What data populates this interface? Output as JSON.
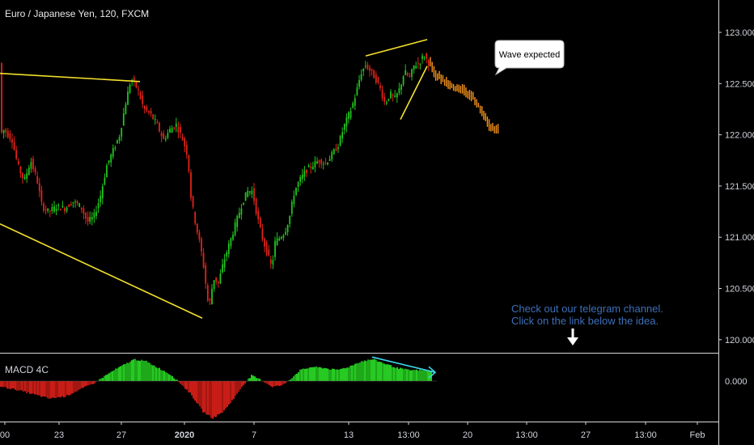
{
  "title": "Euro / Japanese Yen, 120, FXCM",
  "callout": "Wave expected",
  "note_lines": [
    "Check out our telegram channel.",
    "Click on the link below the idea."
  ],
  "indicator_label": "MACD 4C",
  "colors": {
    "up": "#22c41e",
    "down": "#e0241a",
    "projection": "#f7941d",
    "trendline": "#f5e22a",
    "divergence": "#3fd8e8",
    "note": "#3d6fb8",
    "background": "#000000",
    "axis_text": "#d1d4dc"
  },
  "chart_data": [
    {
      "type": "candlestick",
      "name": "Euro / Japanese Yen, 120, FXCM",
      "price_ticks": [
        "123.000",
        "122.500",
        "122.000",
        "121.500",
        "121.000",
        "120.500",
        "120.000"
      ],
      "ylim": [
        119.9,
        123.15
      ],
      "time_ticks": [
        "00",
        "23",
        "27",
        "2020",
        "7",
        "13",
        "13:00",
        "20",
        "13:00",
        "27",
        "13:00",
        "Feb"
      ],
      "path": [
        [
          0,
          122.0
        ],
        [
          5,
          122.05
        ],
        [
          15,
          121.95
        ],
        [
          22,
          121.7
        ],
        [
          30,
          121.55
        ],
        [
          38,
          121.75
        ],
        [
          46,
          121.55
        ],
        [
          52,
          121.3
        ],
        [
          60,
          121.25
        ],
        [
          70,
          121.3
        ],
        [
          80,
          121.28
        ],
        [
          90,
          121.35
        ],
        [
          100,
          121.3
        ],
        [
          108,
          121.15
        ],
        [
          116,
          121.2
        ],
        [
          124,
          121.4
        ],
        [
          132,
          121.7
        ],
        [
          140,
          121.85
        ],
        [
          148,
          122.0
        ],
        [
          155,
          122.3
        ],
        [
          162,
          122.55
        ],
        [
          170,
          122.45
        ],
        [
          178,
          122.25
        ],
        [
          186,
          122.2
        ],
        [
          194,
          122.1
        ],
        [
          202,
          121.95
        ],
        [
          210,
          122.05
        ],
        [
          218,
          122.1
        ],
        [
          226,
          121.95
        ],
        [
          232,
          121.8
        ],
        [
          236,
          121.4
        ],
        [
          240,
          121.2
        ],
        [
          244,
          121.05
        ],
        [
          248,
          120.9
        ],
        [
          252,
          120.7
        ],
        [
          258,
          120.3
        ],
        [
          264,
          120.6
        ],
        [
          270,
          120.55
        ],
        [
          276,
          120.75
        ],
        [
          282,
          120.9
        ],
        [
          288,
          121.05
        ],
        [
          294,
          121.2
        ],
        [
          300,
          121.35
        ],
        [
          306,
          121.45
        ],
        [
          312,
          121.45
        ],
        [
          318,
          121.2
        ],
        [
          324,
          121.0
        ],
        [
          330,
          120.85
        ],
        [
          336,
          120.7
        ],
        [
          340,
          120.95
        ],
        [
          346,
          121.0
        ],
        [
          352,
          121.05
        ],
        [
          358,
          121.2
        ],
        [
          364,
          121.45
        ],
        [
          370,
          121.55
        ],
        [
          378,
          121.65
        ],
        [
          386,
          121.7
        ],
        [
          394,
          121.75
        ],
        [
          402,
          121.72
        ],
        [
          410,
          121.8
        ],
        [
          418,
          121.9
        ],
        [
          426,
          122.1
        ],
        [
          434,
          122.25
        ],
        [
          440,
          122.4
        ],
        [
          446,
          122.6
        ],
        [
          452,
          122.68
        ],
        [
          458,
          122.62
        ],
        [
          464,
          122.55
        ],
        [
          470,
          122.45
        ],
        [
          476,
          122.3
        ],
        [
          482,
          122.4
        ],
        [
          488,
          122.35
        ],
        [
          494,
          122.45
        ],
        [
          500,
          122.62
        ],
        [
          506,
          122.55
        ],
        [
          512,
          122.68
        ],
        [
          518,
          122.7
        ],
        [
          524,
          122.78
        ],
        [
          530,
          122.7
        ]
      ],
      "projection_path": [
        [
          532,
          122.72
        ],
        [
          538,
          122.58
        ],
        [
          544,
          122.56
        ],
        [
          550,
          122.52
        ],
        [
          556,
          122.5
        ],
        [
          562,
          122.46
        ],
        [
          568,
          122.43
        ],
        [
          574,
          122.44
        ],
        [
          580,
          122.38
        ],
        [
          586,
          122.36
        ],
        [
          592,
          122.28
        ],
        [
          598,
          122.2
        ],
        [
          604,
          122.1
        ],
        [
          610,
          122.06
        ],
        [
          616,
          122.05
        ]
      ],
      "trendlines": [
        [
          [
            0,
            122.6
          ],
          [
            173,
            122.52
          ]
        ],
        [
          [
            0,
            121.13
          ],
          [
            250,
            120.21
          ]
        ],
        [
          [
            452,
            122.77
          ],
          [
            528,
            122.93
          ]
        ],
        [
          [
            495,
            122.15
          ],
          [
            528,
            122.67
          ]
        ]
      ]
    },
    {
      "type": "histogram",
      "name": "MACD 4C",
      "zero_tick": "0.000",
      "ylim": [
        -0.38,
        0.24
      ],
      "bars": [
        [
          0,
          -0.05
        ],
        [
          20,
          -0.08
        ],
        [
          40,
          -0.12
        ],
        [
          60,
          -0.16
        ],
        [
          80,
          -0.14
        ],
        [
          100,
          -0.07
        ],
        [
          115,
          -0.02
        ],
        [
          125,
          0.03
        ],
        [
          140,
          0.1
        ],
        [
          155,
          0.16
        ],
        [
          165,
          0.2
        ],
        [
          180,
          0.18
        ],
        [
          195,
          0.12
        ],
        [
          210,
          0.06
        ],
        [
          222,
          -0.02
        ],
        [
          235,
          -0.12
        ],
        [
          250,
          -0.28
        ],
        [
          262,
          -0.34
        ],
        [
          275,
          -0.28
        ],
        [
          290,
          -0.14
        ],
        [
          300,
          -0.03
        ],
        [
          310,
          0.05
        ],
        [
          322,
          0.01
        ],
        [
          335,
          -0.05
        ],
        [
          348,
          -0.04
        ],
        [
          358,
          0.02
        ],
        [
          370,
          0.1
        ],
        [
          385,
          0.13
        ],
        [
          400,
          0.12
        ],
        [
          415,
          0.1
        ],
        [
          430,
          0.13
        ],
        [
          445,
          0.18
        ],
        [
          460,
          0.2
        ],
        [
          475,
          0.16
        ],
        [
          490,
          0.12
        ],
        [
          505,
          0.1
        ],
        [
          520,
          0.1
        ],
        [
          533,
          0.09
        ]
      ],
      "divergence_line": [
        [
          460,
          0.22
        ],
        [
          538,
          0.08
        ]
      ]
    }
  ]
}
